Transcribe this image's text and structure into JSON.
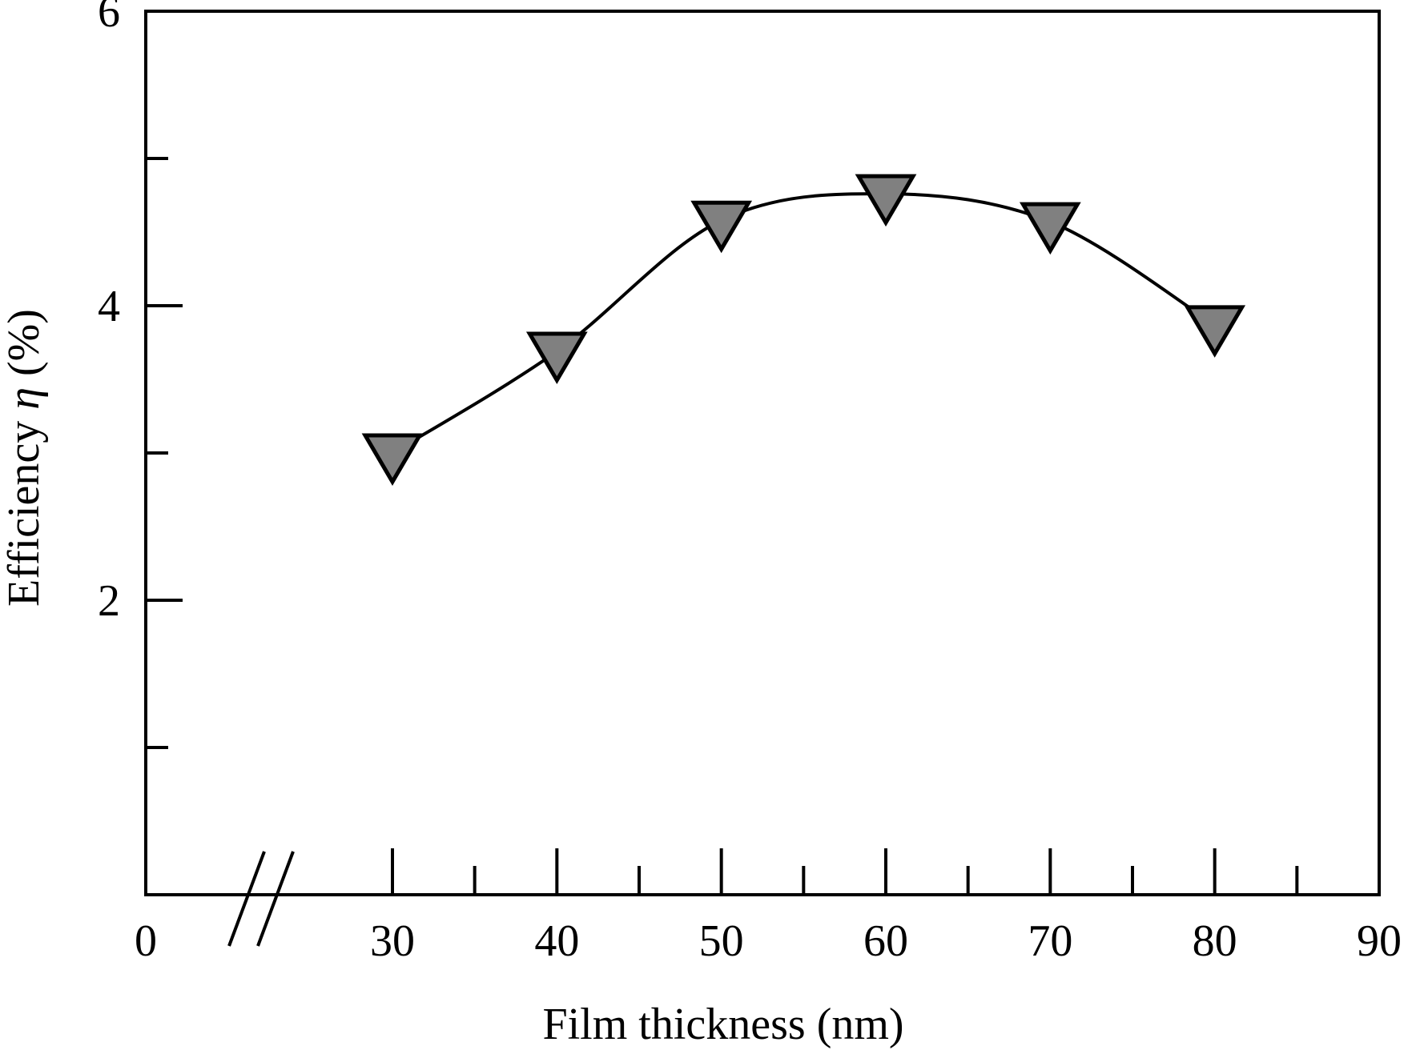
{
  "chart_data": {
    "type": "line",
    "title": "",
    "xlabel": "Film thickness (nm)",
    "ylabel_prefix": "Efficiency ",
    "ylabel_symbol": "η",
    "ylabel_suffix": " (%)",
    "x_axis": {
      "min": 0,
      "max": 90,
      "axis_break_after": 0,
      "axis_break_before": 30,
      "major_ticks": [
        30,
        40,
        50,
        60,
        70,
        80,
        90
      ],
      "minor_ticks": [
        35,
        45,
        55,
        65,
        75,
        85
      ],
      "tick_labels": [
        "0",
        "30",
        "40",
        "50",
        "60",
        "70",
        "80",
        "90"
      ]
    },
    "y_axis": {
      "min": 0,
      "max": 6,
      "major_ticks": [
        2,
        4,
        6
      ],
      "minor_ticks": [
        1,
        3,
        5
      ],
      "tick_labels": [
        "2",
        "4",
        "6"
      ]
    },
    "grid": false,
    "series": [
      {
        "marker": "down-triangle",
        "marker_color": "#808080",
        "line_color": "#000000",
        "x": [
          30,
          40,
          50,
          60,
          70,
          80
        ],
        "y": [
          3.0,
          3.69,
          4.58,
          4.76,
          4.57,
          3.87
        ]
      }
    ]
  }
}
